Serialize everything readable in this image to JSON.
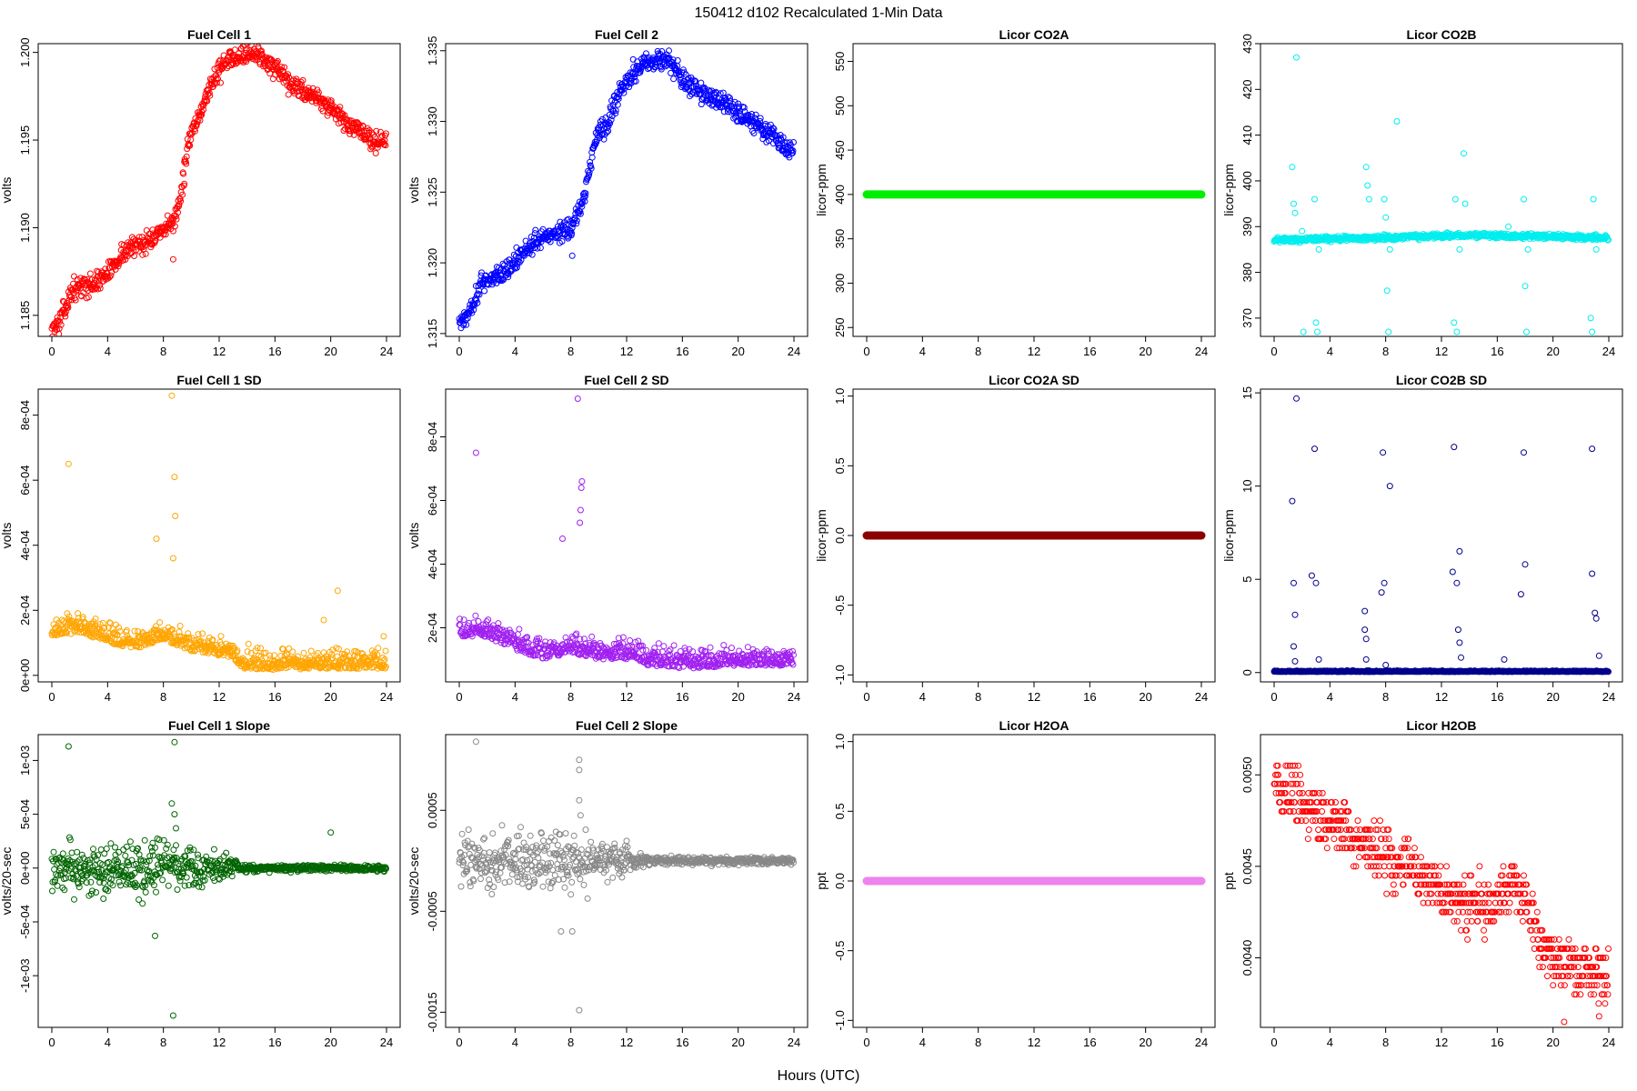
{
  "figure": {
    "title": "150412   d102   Recalculated 1-Min Data",
    "xlabel": "Hours (UTC)"
  },
  "chart_data": [
    {
      "type": "scatter",
      "title": "Fuel Cell 1",
      "ylabel": "volts",
      "color": "#ff0000",
      "xlim": [
        0,
        24
      ],
      "ylim": [
        1.1838,
        1.2005
      ],
      "yticks": [
        1.185,
        1.19,
        1.195,
        1.2
      ],
      "ytick_labels": [
        "1.185",
        "1.190",
        "1.195",
        "1.200"
      ],
      "trend": {
        "x": [
          0,
          0.5,
          1,
          1.5,
          2,
          3,
          4,
          5,
          6,
          7,
          8,
          8.8,
          9.3,
          9.8,
          10.5,
          11,
          12,
          13,
          14,
          15,
          16,
          17,
          18,
          19,
          20,
          21,
          22,
          23,
          24
        ],
        "y": [
          1.1843,
          1.1845,
          1.1855,
          1.1865,
          1.1866,
          1.1868,
          1.1874,
          1.1885,
          1.189,
          1.1893,
          1.1897,
          1.1905,
          1.192,
          1.195,
          1.196,
          1.1975,
          1.199,
          1.1998,
          1.2,
          1.1998,
          1.199,
          1.1982,
          1.1978,
          1.1975,
          1.1968,
          1.196,
          1.1955,
          1.195,
          1.1948
        ]
      },
      "noise": 0.0004,
      "outliers": [
        [
          8.7,
          1.1882
        ],
        [
          1.0,
          1.1852
        ],
        [
          9.5,
          1.1925
        ]
      ]
    },
    {
      "type": "scatter",
      "title": "Fuel Cell 2",
      "ylabel": "volts",
      "color": "#0000ff",
      "xlim": [
        0,
        24
      ],
      "ylim": [
        1.3148,
        1.3355
      ],
      "yticks": [
        1.315,
        1.32,
        1.325,
        1.33,
        1.335
      ],
      "ytick_labels": [
        "1.315",
        "1.320",
        "1.325",
        "1.330",
        "1.335"
      ],
      "trend": {
        "x": [
          0,
          0.5,
          1,
          1.5,
          2,
          3,
          4,
          5,
          6,
          7,
          8,
          8.8,
          9.3,
          9.8,
          10.5,
          11,
          12,
          13,
          14,
          15,
          16,
          17,
          18,
          19,
          20,
          21,
          22,
          23,
          24
        ],
        "y": [
          1.3157,
          1.3162,
          1.3172,
          1.3185,
          1.3188,
          1.3192,
          1.32,
          1.3212,
          1.3218,
          1.3222,
          1.3225,
          1.324,
          1.3265,
          1.329,
          1.3296,
          1.331,
          1.333,
          1.334,
          1.3344,
          1.3343,
          1.333,
          1.3322,
          1.3318,
          1.3312,
          1.3306,
          1.33,
          1.3294,
          1.3285,
          1.328
        ]
      },
      "noise": 0.0005,
      "outliers": [
        [
          8.1,
          1.3205
        ],
        [
          1.0,
          1.317
        ]
      ]
    },
    {
      "type": "scatter",
      "title": "Licor CO2A",
      "ylabel": "licor-ppm",
      "color": "#00ee00",
      "xlim": [
        0,
        24
      ],
      "ylim": [
        240,
        570
      ],
      "yticks": [
        250,
        300,
        350,
        400,
        450,
        500,
        550
      ],
      "ytick_labels": [
        "250",
        "300",
        "350",
        "400",
        "450",
        "500",
        "550"
      ],
      "trend": {
        "x": [
          0,
          24
        ],
        "y": [
          400,
          400
        ]
      },
      "noise": 0,
      "outliers": []
    },
    {
      "type": "scatter",
      "title": "Licor CO2B",
      "ylabel": "licor-ppm",
      "color": "#00eeee",
      "xlim": [
        0,
        24
      ],
      "ylim": [
        366,
        430
      ],
      "yticks": [
        370,
        380,
        390,
        400,
        410,
        420,
        430
      ],
      "ytick_labels": [
        "370",
        "380",
        "390",
        "400",
        "410",
        "420",
        "430"
      ],
      "trend": {
        "x": [
          0,
          2,
          4,
          6,
          8,
          10,
          12,
          14,
          16,
          18,
          20,
          22,
          24
        ],
        "y": [
          387,
          387.2,
          387.4,
          387.5,
          387.6,
          387.8,
          388,
          388,
          388,
          387.9,
          387.8,
          387.7,
          387.6
        ]
      },
      "noise": 0.4,
      "outliers": [
        [
          1.6,
          427
        ],
        [
          1.3,
          403
        ],
        [
          1.4,
          395
        ],
        [
          1.5,
          393
        ],
        [
          2.0,
          389
        ],
        [
          2.1,
          367
        ],
        [
          2.9,
          396
        ],
        [
          3.0,
          369
        ],
        [
          3.1,
          367
        ],
        [
          3.2,
          385
        ],
        [
          6.6,
          403
        ],
        [
          6.7,
          399
        ],
        [
          6.8,
          396
        ],
        [
          7.9,
          396
        ],
        [
          8.0,
          392
        ],
        [
          8.1,
          376
        ],
        [
          8.2,
          367
        ],
        [
          8.3,
          385
        ],
        [
          8.8,
          413
        ],
        [
          13.0,
          396
        ],
        [
          12.9,
          369
        ],
        [
          13.1,
          367
        ],
        [
          13.3,
          385
        ],
        [
          13.6,
          406
        ],
        [
          13.7,
          395
        ],
        [
          16.8,
          390
        ],
        [
          17.9,
          396
        ],
        [
          18.0,
          377
        ],
        [
          18.1,
          367
        ],
        [
          18.2,
          385
        ],
        [
          22.7,
          370
        ],
        [
          22.8,
          367
        ],
        [
          22.9,
          396
        ],
        [
          23.1,
          385
        ]
      ]
    },
    {
      "type": "scatter",
      "title": "Fuel Cell 1 SD",
      "ylabel": "volts",
      "color": "#ffa500",
      "xlim": [
        0,
        24
      ],
      "ylim": [
        -2e-05,
        0.00088
      ],
      "yticks": [
        0,
        0.0002,
        0.0004,
        0.0006,
        0.0008
      ],
      "ytick_labels": [
        "0e+00",
        "2e-04",
        "4e-04",
        "6e-04",
        "8e-04"
      ],
      "trend": {
        "x": [
          0,
          2,
          4,
          6,
          8,
          9,
          10,
          12,
          13,
          13.5,
          16,
          20,
          24
        ],
        "y": [
          0.00013,
          0.00014,
          0.00011,
          9e-05,
          0.00012,
          0.0001,
          8e-05,
          7e-05,
          6e-05,
          3e-05,
          2.5e-05,
          3e-05,
          3e-05
        ]
      },
      "noise": 3e-05,
      "positive": true,
      "outliers": [
        [
          8.6,
          0.00086
        ],
        [
          8.8,
          0.00061
        ],
        [
          8.85,
          0.00049
        ],
        [
          8.7,
          0.00036
        ],
        [
          7.5,
          0.00042
        ],
        [
          1.2,
          0.00065
        ],
        [
          20.5,
          0.00026
        ],
        [
          19.5,
          0.00017
        ],
        [
          23.8,
          0.00012
        ]
      ]
    },
    {
      "type": "scatter",
      "title": "Fuel Cell 2 SD",
      "ylabel": "volts",
      "color": "#a020f0",
      "xlim": [
        0,
        24
      ],
      "ylim": [
        3e-05,
        0.00095
      ],
      "yticks": [
        0.0002,
        0.0004,
        0.0006,
        0.0008
      ],
      "ytick_labels": [
        "2e-04",
        "4e-04",
        "6e-04",
        "8e-04"
      ],
      "trend": {
        "x": [
          0,
          2,
          4,
          6,
          8,
          9,
          10,
          12,
          13,
          13.5,
          16,
          20,
          24
        ],
        "y": [
          0.00018,
          0.00018,
          0.00014,
          0.00011,
          0.00013,
          0.00012,
          0.00011,
          0.00011,
          0.0001,
          9e-05,
          8e-05,
          9e-05,
          9e-05
        ]
      },
      "noise": 3e-05,
      "positive": true,
      "outliers": [
        [
          8.5,
          0.00092
        ],
        [
          8.8,
          0.00066
        ],
        [
          8.75,
          0.00064
        ],
        [
          8.7,
          0.00057
        ],
        [
          8.65,
          0.00053
        ],
        [
          1.2,
          0.00075
        ],
        [
          7.4,
          0.00048
        ]
      ]
    },
    {
      "type": "scatter",
      "title": "Licor CO2A SD",
      "ylabel": "licor-ppm",
      "color": "#8b0000",
      "xlim": [
        0,
        24
      ],
      "ylim": [
        -1.05,
        1.05
      ],
      "yticks": [
        -1,
        -0.5,
        0,
        0.5,
        1
      ],
      "ytick_labels": [
        "-1.0",
        "-0.5",
        "0.0",
        "0.5",
        "1.0"
      ],
      "trend": {
        "x": [
          0,
          24
        ],
        "y": [
          0,
          0
        ]
      },
      "noise": 0,
      "outliers": []
    },
    {
      "type": "scatter",
      "title": "Licor CO2B SD",
      "ylabel": "licor-ppm",
      "color": "#00008b",
      "xlim": [
        0,
        24
      ],
      "ylim": [
        -0.5,
        15.2
      ],
      "yticks": [
        0,
        5,
        10,
        15
      ],
      "ytick_labels": [
        "0",
        "5",
        "10",
        "15"
      ],
      "trend": {
        "x": [
          0,
          24
        ],
        "y": [
          0.05,
          0.05
        ]
      },
      "noise": 0.03,
      "positive": true,
      "outliers": [
        [
          1.6,
          14.7
        ],
        [
          1.3,
          9.2
        ],
        [
          1.4,
          4.8
        ],
        [
          1.5,
          3.1
        ],
        [
          1.4,
          1.4
        ],
        [
          1.5,
          0.6
        ],
        [
          2.9,
          12
        ],
        [
          2.7,
          5.2
        ],
        [
          3.0,
          4.8
        ],
        [
          3.2,
          0.7
        ],
        [
          6.5,
          3.3
        ],
        [
          6.5,
          2.3
        ],
        [
          6.6,
          1.8
        ],
        [
          6.6,
          0.7
        ],
        [
          7.8,
          11.8
        ],
        [
          7.9,
          4.8
        ],
        [
          7.7,
          4.3
        ],
        [
          8.3,
          10
        ],
        [
          8.0,
          0.4
        ],
        [
          12.9,
          12.1
        ],
        [
          12.8,
          5.4
        ],
        [
          13.1,
          4.8
        ],
        [
          13.3,
          6.5
        ],
        [
          13.2,
          2.3
        ],
        [
          13.3,
          1.6
        ],
        [
          13.4,
          0.8
        ],
        [
          16.5,
          0.7
        ],
        [
          17.9,
          11.8
        ],
        [
          17.7,
          4.2
        ],
        [
          18.0,
          5.8
        ],
        [
          22.8,
          12
        ],
        [
          22.8,
          5.3
        ],
        [
          23.0,
          3.2
        ],
        [
          23.1,
          2.9
        ],
        [
          23.3,
          0.9
        ]
      ]
    },
    {
      "type": "scatter",
      "title": "Fuel Cell 1 Slope",
      "ylabel": "volts/20-sec",
      "color": "#006400",
      "xlim": [
        0,
        24
      ],
      "ylim": [
        -0.00148,
        0.00124
      ],
      "yticks": [
        -0.001,
        -0.0005,
        0,
        0.0005,
        0.001
      ],
      "ytick_labels": [
        "-1e-03",
        "-5e-04",
        "0e+00",
        "5e-04",
        "1e-03"
      ],
      "trend": {
        "x": [
          0,
          24
        ],
        "y": [
          0,
          0
        ]
      },
      "noise_profile": {
        "x": [
          0,
          9,
          10,
          12,
          13,
          13.5,
          24
        ],
        "s": [
          0.00016,
          0.00018,
          0.00012,
          0.0001,
          6e-05,
          2.5e-05,
          2e-05
        ]
      },
      "outliers": [
        [
          8.8,
          0.00117
        ],
        [
          1.2,
          0.00113
        ],
        [
          8.7,
          -0.00137
        ],
        [
          7.4,
          -0.00063
        ],
        [
          8.6,
          0.0006
        ],
        [
          8.8,
          0.0005
        ],
        [
          8.9,
          0.00037
        ],
        [
          20,
          0.00033
        ]
      ]
    },
    {
      "type": "scatter",
      "title": "Fuel Cell 2 Slope",
      "ylabel": "volts/20-sec",
      "color": "#888888",
      "xlim": [
        0,
        24
      ],
      "ylim": [
        -0.00165,
        0.00125
      ],
      "yticks": [
        -0.0015,
        -0.0005,
        0.0005
      ],
      "ytick_labels": [
        "-0.0015",
        "-0.0005",
        "0.0005"
      ],
      "trend": {
        "x": [
          0,
          24
        ],
        "y": [
          0,
          0
        ]
      },
      "noise_profile": {
        "x": [
          0,
          9,
          10,
          12,
          13,
          13.5,
          24
        ],
        "s": [
          0.00018,
          0.0002,
          0.00013,
          0.00011,
          6e-05,
          3e-05,
          2.5e-05
        ]
      },
      "outliers": [
        [
          1.2,
          0.00118
        ],
        [
          8.6,
          0.001
        ],
        [
          8.6,
          0.0009
        ],
        [
          8.6,
          -0.00148
        ],
        [
          7.3,
          -0.0007
        ],
        [
          8.1,
          -0.0007
        ],
        [
          8.6,
          0.0006
        ],
        [
          8.7,
          0.00045
        ]
      ]
    },
    {
      "type": "scatter",
      "title": "Licor H2OA",
      "ylabel": "ppt",
      "color": "#ee82ee",
      "xlim": [
        0,
        24
      ],
      "ylim": [
        -1.05,
        1.05
      ],
      "yticks": [
        -1,
        -0.5,
        0,
        0.5,
        1
      ],
      "ytick_labels": [
        "-1.0",
        "-0.5",
        "0.0",
        "0.5",
        "1.0"
      ],
      "trend": {
        "x": [
          0,
          24
        ],
        "y": [
          0,
          0
        ]
      },
      "noise": 0,
      "outliers": []
    },
    {
      "type": "scatter",
      "title": "Licor H2OB",
      "ylabel": "ppt",
      "color": "#ff0000",
      "xlim": [
        0,
        24
      ],
      "ylim": [
        0.00362,
        0.00522
      ],
      "yticks": [
        0.004,
        0.0045,
        0.005
      ],
      "ytick_labels": [
        "0.0040",
        "0.0045",
        "0.0050"
      ],
      "trend": {
        "x": [
          0,
          2,
          4,
          6,
          8,
          10,
          12,
          14,
          16,
          17,
          18,
          19,
          20,
          22,
          24
        ],
        "y": [
          0.00495,
          0.00485,
          0.00475,
          0.00465,
          0.00455,
          0.0045,
          0.00435,
          0.0043,
          0.0043,
          0.0044,
          0.0043,
          0.0041,
          0.004,
          0.00395,
          0.0039
        ]
      },
      "noise": 0.00011,
      "quant": 5e-05,
      "outliers": [
        [
          23.3,
          0.00368
        ],
        [
          20.8,
          0.00365
        ]
      ]
    }
  ],
  "x_axis": {
    "ticks": [
      0,
      4,
      8,
      12,
      16,
      20,
      24
    ],
    "tick_labels": [
      "0",
      "4",
      "8",
      "12",
      "16",
      "20",
      "24"
    ]
  }
}
